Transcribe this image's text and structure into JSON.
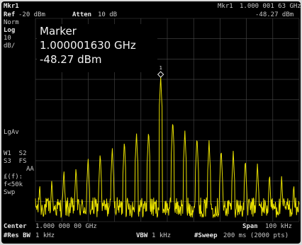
{
  "header": {
    "ref_label": "Ref",
    "ref_value": "-20 dBm",
    "atten_label": "Atten",
    "atten_value": "10 dB",
    "mkr_label": "Mkr1",
    "mkr_freq": "1.000 001 63 GHz",
    "mkr_amp": "-48.27 dBm"
  },
  "left_panel": {
    "norm": "Norm",
    "log": "Log",
    "scale_value": "10",
    "scale_unit": "dB/",
    "lgav": "LgAv",
    "w1s2": "W1  S2",
    "s3fs": "S3  FS",
    "aa": "AA",
    "ef": "£(f):",
    "flt": "f<50k",
    "swp": "Swp"
  },
  "marker_readout": {
    "title": "Marker",
    "freq": "1.000001630 GHz",
    "amp": "-48.27 dBm",
    "marker_number": "1"
  },
  "footer": {
    "center_label": "Center",
    "center_value": "1.000 000 00 GHz",
    "span_label": "Span",
    "span_value": "100 kHz",
    "resbw_label": "#Res BW",
    "resbw_value": "1 kHz",
    "vbw_label": "VBW",
    "vbw_value": "1 kHz",
    "sweep_label": "#Sweep",
    "sweep_value": "200 ms (2000 pts)"
  },
  "colors": {
    "background": "#000000",
    "trace": "#e8e000",
    "grid": "#4a4a4a",
    "text": "#c8c8c8",
    "bezel": "#d9d9d9"
  },
  "trace": {
    "comb_spacing_khz": 4.7,
    "peak_levels_db": [
      -101,
      -99,
      -94,
      -93,
      -88,
      -86,
      -83,
      -80,
      -76,
      -75,
      -68,
      -70,
      -75,
      -78,
      -80,
      -84,
      -85,
      -89,
      -91,
      -96,
      -97,
      -101
    ],
    "noise_floor_db": -113,
    "marker_level_db": -48.27
  }
}
